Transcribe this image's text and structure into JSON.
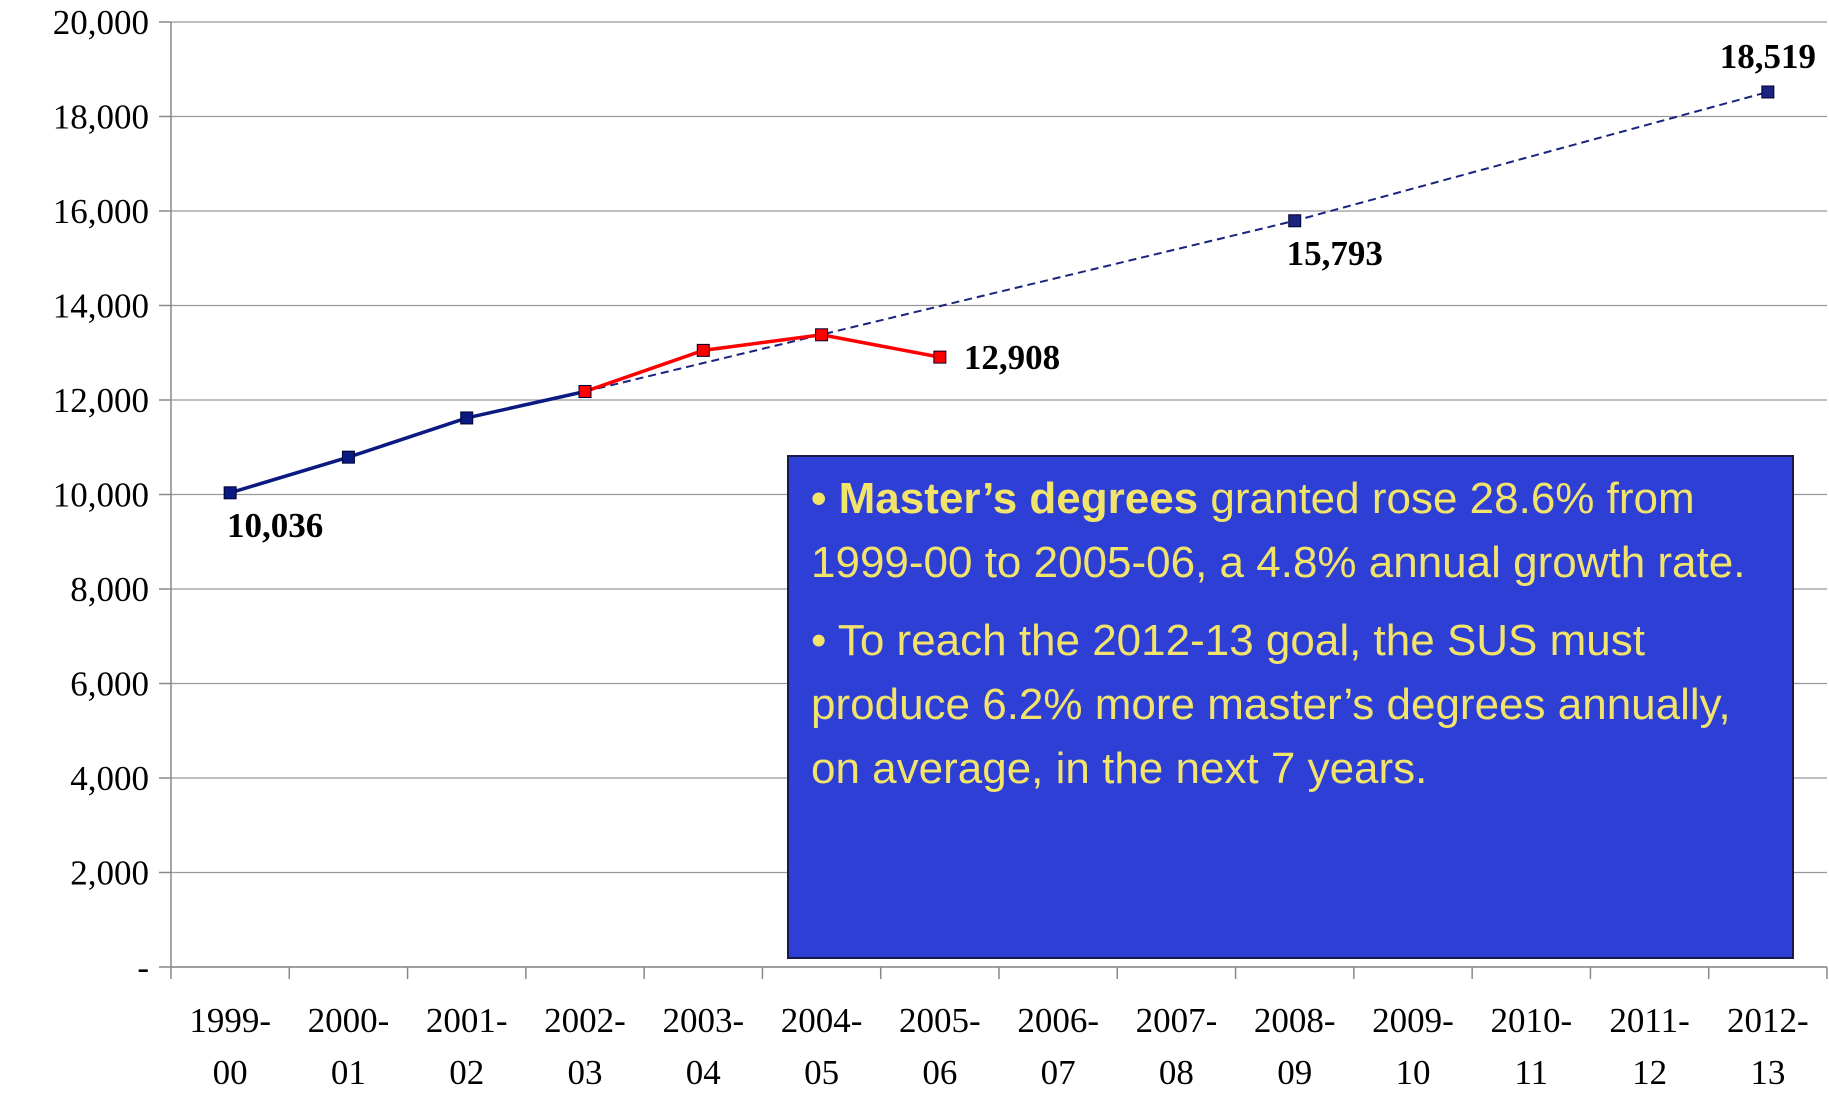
{
  "chart_data": {
    "type": "line",
    "categories": [
      "1999-00",
      "2000-01",
      "2001-02",
      "2002-03",
      "2003-04",
      "2004-05",
      "2005-06",
      "2006-07",
      "2007-08",
      "2008-09",
      "2009-10",
      "2010-11",
      "2011-12",
      "2012-13"
    ],
    "series": [
      {
        "color": "#0a1a80",
        "line_style": "solid",
        "values": [
          10036,
          10790,
          11620,
          12180,
          null,
          null,
          null,
          null,
          null,
          null,
          null,
          null,
          null,
          null
        ],
        "value_labels": [
          "10,036",
          null,
          null,
          null,
          null,
          null,
          null,
          null,
          null,
          null,
          null,
          null,
          null,
          null
        ]
      },
      {
        "color": "#1a237e",
        "line_style": "dashed",
        "connect_gaps": true,
        "values": [
          null,
          null,
          null,
          12180,
          null,
          null,
          null,
          null,
          null,
          15793,
          null,
          null,
          null,
          18519
        ],
        "value_labels": [
          null,
          null,
          null,
          null,
          null,
          null,
          null,
          null,
          null,
          "15,793",
          null,
          null,
          null,
          "18,519"
        ]
      },
      {
        "color": "#ff0000",
        "line_style": "solid",
        "values": [
          null,
          null,
          null,
          12180,
          13050,
          13380,
          12908,
          null,
          null,
          null,
          null,
          null,
          null,
          null
        ],
        "value_labels": [
          null,
          null,
          null,
          null,
          null,
          null,
          "12,908",
          null,
          null,
          null,
          null,
          null,
          null,
          null
        ]
      }
    ],
    "ylim": [
      0,
      20000
    ],
    "yticks": [
      {
        "value": 0,
        "label": "-"
      },
      {
        "value": 2000,
        "label": "2,000"
      },
      {
        "value": 4000,
        "label": "4,000"
      },
      {
        "value": 6000,
        "label": "6,000"
      },
      {
        "value": 8000,
        "label": "8,000"
      },
      {
        "value": 10000,
        "label": "10,000"
      },
      {
        "value": 12000,
        "label": "12,000"
      },
      {
        "value": 14000,
        "label": "14,000"
      },
      {
        "value": 16000,
        "label": "16,000"
      },
      {
        "value": 18000,
        "label": "18,000"
      },
      {
        "value": 20000,
        "label": "20,000"
      }
    ],
    "grid": true,
    "annotation": {
      "paragraphs": [
        {
          "bold": "• Master’s degrees",
          "text": " granted rose 28.6% from 1999-00 to 2005-06, a 4.8% annual growth rate."
        },
        {
          "text": "• To reach the 2012-13 goal, the SUS must produce 6.2% more master’s degrees annually, on average, in the next 7 years."
        }
      ]
    }
  }
}
